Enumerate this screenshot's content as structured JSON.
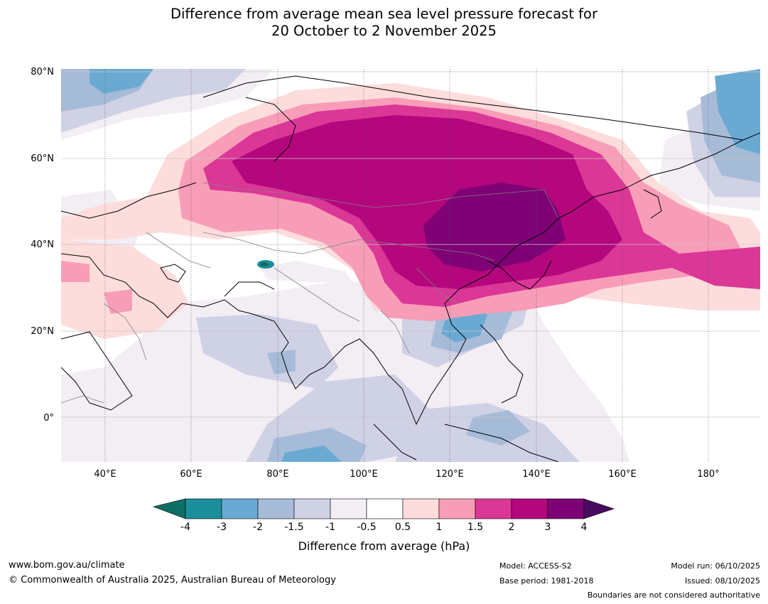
{
  "title": {
    "line1": "Difference from average mean sea level pressure forecast for",
    "line2": "20 October to 2 November 2025"
  },
  "map": {
    "lat_labels": [
      "80°N",
      "60°N",
      "40°N",
      "20°N",
      "0°"
    ],
    "lon_labels": [
      "40°E",
      "60°E",
      "80°E",
      "100°E",
      "120°E",
      "140°E",
      "160°E",
      "180°"
    ],
    "extent": {
      "lon_min": 30,
      "lon_max": 191,
      "lat_min": -10,
      "lat_max": 80
    }
  },
  "colorbar": {
    "title": "Difference from average (hPa)",
    "ticks": [
      "-4",
      "-3",
      "-2",
      "-1.5",
      "-1",
      "-0.5",
      "0.5",
      "1",
      "1.5",
      "2",
      "3",
      "4"
    ],
    "colors": [
      "#0f6e64",
      "#1b8f99",
      "#6aaad2",
      "#a6bbd8",
      "#cfd1e5",
      "#f3edf4",
      "#ffffff",
      "#fddcdc",
      "#f89db8",
      "#db3797",
      "#b4067d",
      "#7e0275",
      "#4b0a62"
    ]
  },
  "footer": {
    "url": "www.bom.gov.au/climate",
    "copyright": "© Commonwealth of Australia 2025, Australian Bureau of Meteorology",
    "model": "Model: ACCESS-S2",
    "base_period": "Base period: 1981-2018",
    "model_run": "Model run: 06/10/2025",
    "issued": "Issued: 08/10/2025",
    "disclaimer": "Boundaries are not considered authoritative"
  }
}
